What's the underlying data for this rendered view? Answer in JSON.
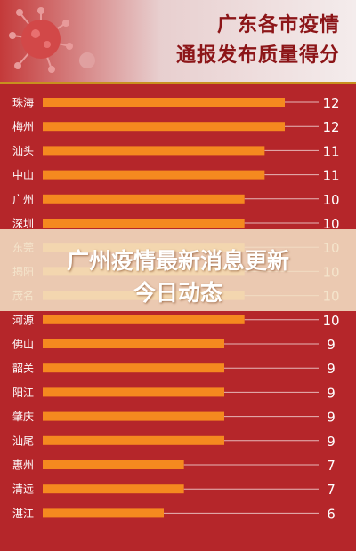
{
  "header": {
    "title_line1": "广东各市疫情",
    "title_line2": "通报发布质量得分"
  },
  "overlay": {
    "line1": "广州疫情最新消息更新",
    "line2": "今日动态"
  },
  "colors": {
    "background": "#b5262a",
    "bar": "#f5891f",
    "text": "#ffffff"
  },
  "chart_data": {
    "type": "bar",
    "orientation": "horizontal",
    "categories": [
      "珠海",
      "梅州",
      "汕头",
      "中山",
      "广州",
      "深圳",
      "东莞",
      "揭阳",
      "茂名",
      "河源",
      "佛山",
      "韶关",
      "阳江",
      "肇庆",
      "汕尾",
      "惠州",
      "清远",
      "湛江"
    ],
    "values": [
      12,
      12,
      11,
      11,
      10,
      10,
      10,
      10,
      10,
      10,
      9,
      9,
      9,
      9,
      9,
      7,
      7,
      6
    ],
    "value_labels": [
      "12",
      "12",
      "11",
      "11",
      "10",
      "10",
      "10",
      "10",
      "10",
      "10",
      "9",
      "9",
      "9",
      "9",
      "9",
      "7",
      "7",
      "6"
    ],
    "xlim": [
      0,
      12
    ],
    "title": "",
    "xlabel": "",
    "ylabel": ""
  }
}
